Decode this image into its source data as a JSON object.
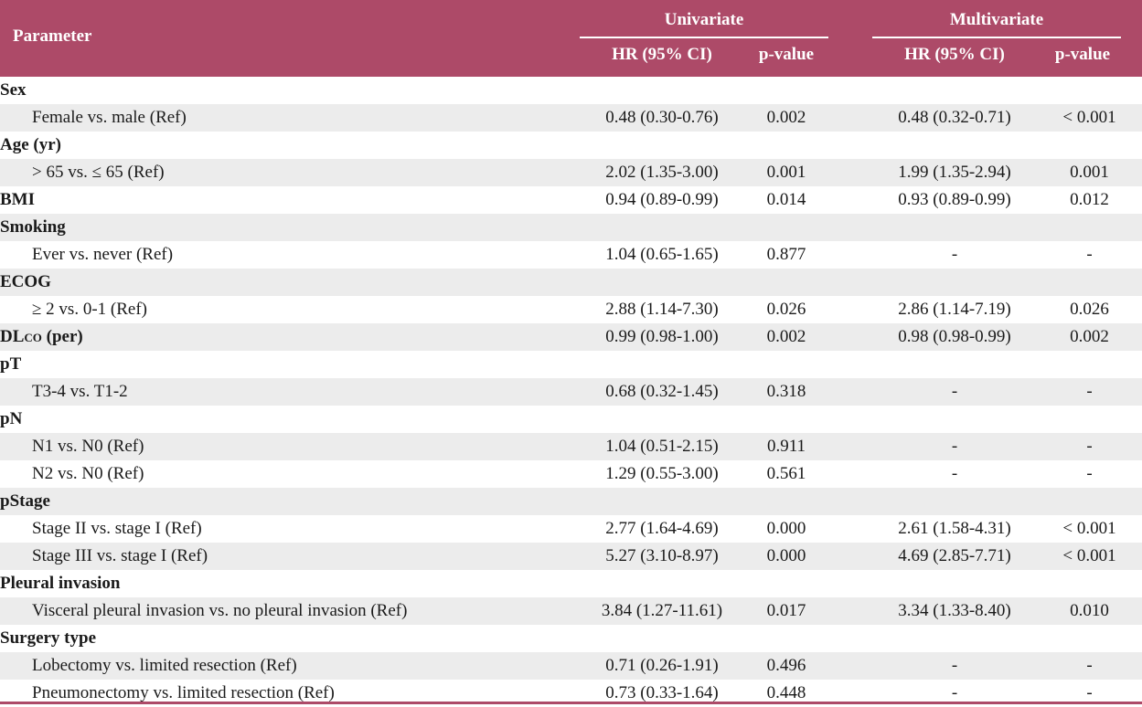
{
  "header": {
    "parameter": "Parameter",
    "univariate": "Univariate",
    "multivariate": "Multivariate",
    "hr_label": "HR (95% CI)",
    "p_label": "p-value"
  },
  "rows": [
    {
      "type": "group",
      "label": "Sex",
      "shade": false
    },
    {
      "type": "sub",
      "label": "Female vs. male (Ref)",
      "shade": true,
      "uni_hr": "0.48 (0.30-0.76)",
      "uni_p": "0.002",
      "multi_hr": "0.48 (0.32-0.71)",
      "multi_p": "< 0.001"
    },
    {
      "type": "group",
      "label": "Age (yr)",
      "shade": false
    },
    {
      "type": "sub",
      "label": "> 65 vs. ≤ 65 (Ref)",
      "shade": true,
      "uni_hr": "2.02 (1.35-3.00)",
      "uni_p": "0.001",
      "multi_hr": "1.99 (1.35-2.94)",
      "multi_p": "0.001"
    },
    {
      "type": "group",
      "label": "BMI",
      "shade": false,
      "uni_hr": "0.94 (0.89-0.99)",
      "uni_p": "0.014",
      "multi_hr": "0.93 (0.89-0.99)",
      "multi_p": "0.012"
    },
    {
      "type": "group",
      "label": "Smoking",
      "shade": true
    },
    {
      "type": "sub",
      "label": "Ever vs. never (Ref)",
      "shade": false,
      "uni_hr": "1.04 (0.65-1.65)",
      "uni_p": "0.877",
      "multi_hr": "-",
      "multi_p": "-"
    },
    {
      "type": "group",
      "label": "ECOG",
      "shade": true
    },
    {
      "type": "sub",
      "label": "≥ 2 vs. 0-1 (Ref)",
      "shade": false,
      "uni_hr": "2.88 (1.14-7.30)",
      "uni_p": "0.026",
      "multi_hr": "2.86 (1.14-7.19)",
      "multi_p": "0.026"
    },
    {
      "type": "group",
      "label": "DL",
      "label_sub": "CO",
      "label_post": " (per)",
      "shade": true,
      "uni_hr": "0.99 (0.98-1.00)",
      "uni_p": "0.002",
      "multi_hr": "0.98 (0.98-0.99)",
      "multi_p": "0.002"
    },
    {
      "type": "group",
      "label": "pT",
      "shade": false
    },
    {
      "type": "sub",
      "label": "T3-4 vs. T1-2",
      "shade": true,
      "uni_hr": "0.68 (0.32-1.45)",
      "uni_p": "0.318",
      "multi_hr": "-",
      "multi_p": "-"
    },
    {
      "type": "group",
      "label": "pN",
      "shade": false
    },
    {
      "type": "sub",
      "label": "N1 vs. N0 (Ref)",
      "shade": true,
      "uni_hr": "1.04 (0.51-2.15)",
      "uni_p": "0.911",
      "multi_hr": "-",
      "multi_p": "-"
    },
    {
      "type": "sub",
      "label": "N2 vs. N0 (Ref)",
      "shade": false,
      "uni_hr": "1.29 (0.55-3.00)",
      "uni_p": "0.561",
      "multi_hr": "-",
      "multi_p": "-"
    },
    {
      "type": "group",
      "label": "pStage",
      "shade": true
    },
    {
      "type": "sub",
      "label": "Stage II vs. stage I (Ref)",
      "shade": false,
      "uni_hr": "2.77 (1.64-4.69)",
      "uni_p": "0.000",
      "multi_hr": "2.61 (1.58-4.31)",
      "multi_p": "< 0.001"
    },
    {
      "type": "sub",
      "label": "Stage III vs. stage I (Ref)",
      "shade": true,
      "uni_hr": "5.27 (3.10-8.97)",
      "uni_p": "0.000",
      "multi_hr": "4.69 (2.85-7.71)",
      "multi_p": "< 0.001"
    },
    {
      "type": "group",
      "label": "Pleural invasion",
      "shade": false
    },
    {
      "type": "sub",
      "label": "Visceral pleural invasion vs. no pleural invasion (Ref)",
      "shade": true,
      "uni_hr": "3.84 (1.27-11.61)",
      "uni_p": "0.017",
      "multi_hr": "3.34 (1.33-8.40)",
      "multi_p": "0.010"
    },
    {
      "type": "group",
      "label": "Surgery type",
      "shade": false
    },
    {
      "type": "sub",
      "label": "Lobectomy vs. limited resection (Ref)",
      "shade": true,
      "uni_hr": "0.71 (0.26-1.91)",
      "uni_p": "0.496",
      "multi_hr": "-",
      "multi_p": "-"
    },
    {
      "type": "sub",
      "label": "Pneumonectomy vs. limited resection (Ref)",
      "shade": false,
      "uni_hr": "0.73 (0.33-1.64)",
      "uni_p": "0.448",
      "multi_hr": "-",
      "multi_p": "-"
    }
  ],
  "colors": {
    "header_bg": "#ad4a68",
    "shade_row": "#ececec"
  }
}
